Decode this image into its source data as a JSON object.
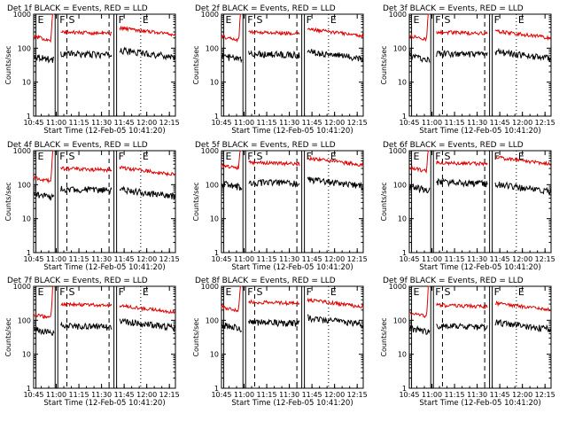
{
  "layout_grid": {
    "rows": 3,
    "cols": 3
  },
  "colors": {
    "events": "#000000",
    "lld": "#e00000",
    "background": "#ffffff"
  },
  "chart_data": [
    {
      "type": "line",
      "title": "Det 1f BLACK = Events, RED = LLD",
      "xlabel": "Start Time (12-Feb-05 10:41:20)",
      "ylabel": "Counts/sec",
      "yscale": "log",
      "ylim": [
        1,
        1000
      ],
      "y_ticks": [
        1,
        10,
        100,
        1000
      ],
      "y_tick_labels": [
        "1",
        "10",
        "100",
        "1000"
      ],
      "x_range_min": [
        4.0,
        98.0
      ],
      "x_ticks": [
        4,
        19,
        34,
        49,
        64,
        79,
        94
      ],
      "x_tick_labels": [
        "10:45",
        "11:00",
        "11:15",
        "11:30",
        "11:45",
        "12:00",
        "12:15"
      ],
      "markers": [
        {
          "label": "E",
          "t": 5.5,
          "style": "solid"
        },
        {
          "label": "F",
          "t": 20.0,
          "style": "solid"
        },
        {
          "label": "S",
          "t": 26.0,
          "style": "dashed"
        },
        {
          "label": "F",
          "t": 59.0,
          "style": "solid"
        },
        {
          "label": "E",
          "t": 75.0,
          "style": "dotted"
        }
      ],
      "series": [
        {
          "name": "Events",
          "color": "#000000",
          "levels": {
            "pre": 60,
            "mid": 70,
            "post": 55
          }
        },
        {
          "name": "LLD",
          "color": "#e00000",
          "levels": {
            "pre": 220,
            "mid": 300,
            "post": 250
          }
        }
      ]
    },
    {
      "type": "line",
      "title": "Det 2f BLACK = Events, RED = LLD",
      "xlabel": "Start Time (12-Feb-05 10:41:20)",
      "ylabel": "Counts/sec",
      "yscale": "log",
      "ylim": [
        1,
        1000
      ],
      "y_ticks": [
        1,
        10,
        100,
        1000
      ],
      "y_tick_labels": [
        "1",
        "10",
        "100",
        "1000"
      ],
      "x_range_min": [
        4.0,
        98.0
      ],
      "x_ticks": [
        4,
        19,
        34,
        49,
        64,
        79,
        94
      ],
      "x_tick_labels": [
        "10:45",
        "11:00",
        "11:15",
        "11:30",
        "11:45",
        "12:00",
        "12:15"
      ],
      "markers": [
        {
          "label": "E",
          "t": 5.5,
          "style": "solid"
        },
        {
          "label": "F",
          "t": 20.0,
          "style": "solid"
        },
        {
          "label": "S",
          "t": 26.0,
          "style": "dashed"
        },
        {
          "label": "F",
          "t": 59.0,
          "style": "solid"
        },
        {
          "label": "E",
          "t": 75.0,
          "style": "dotted"
        }
      ],
      "series": [
        {
          "name": "Events",
          "color": "#000000",
          "levels": {
            "pre": 60,
            "mid": 70,
            "post": 50
          }
        },
        {
          "name": "LLD",
          "color": "#e00000",
          "levels": {
            "pre": 220,
            "mid": 300,
            "post": 230
          }
        }
      ]
    },
    {
      "type": "line",
      "title": "Det 3f BLACK = Events, RED = LLD",
      "xlabel": "Start Time (12-Feb-05 10:41:20)",
      "ylabel": "Counts/sec",
      "yscale": "log",
      "ylim": [
        1,
        1000
      ],
      "y_ticks": [
        1,
        10,
        100,
        1000
      ],
      "y_tick_labels": [
        "1",
        "10",
        "100",
        "1000"
      ],
      "x_range_min": [
        4.0,
        98.0
      ],
      "x_ticks": [
        4,
        19,
        34,
        49,
        64,
        79,
        94
      ],
      "x_tick_labels": [
        "10:45",
        "11:00",
        "11:15",
        "11:30",
        "11:45",
        "12:00",
        "12:15"
      ],
      "markers": [
        {
          "label": "E",
          "t": 5.5,
          "style": "solid"
        },
        {
          "label": "F",
          "t": 20.0,
          "style": "solid"
        },
        {
          "label": "S",
          "t": 26.0,
          "style": "dashed"
        },
        {
          "label": "F",
          "t": 59.0,
          "style": "solid"
        },
        {
          "label": "E",
          "t": 75.0,
          "style": "dotted"
        }
      ],
      "series": [
        {
          "name": "Events",
          "color": "#000000",
          "levels": {
            "pre": 60,
            "mid": 70,
            "post": 50
          }
        },
        {
          "name": "LLD",
          "color": "#e00000",
          "levels": {
            "pre": 230,
            "mid": 300,
            "post": 200
          }
        }
      ]
    },
    {
      "type": "line",
      "title": "Det 4f BLACK = Events, RED = LLD",
      "xlabel": "Start Time (12-Feb-05 10:41:20)",
      "ylabel": "Counts/sec",
      "yscale": "log",
      "ylim": [
        1,
        1000
      ],
      "y_ticks": [
        1,
        10,
        100,
        1000
      ],
      "y_tick_labels": [
        "1",
        "10",
        "100",
        "1000"
      ],
      "x_range_min": [
        4.0,
        98.0
      ],
      "x_ticks": [
        4,
        19,
        34,
        49,
        64,
        79,
        94
      ],
      "x_tick_labels": [
        "10:45",
        "11:00",
        "11:15",
        "11:30",
        "11:45",
        "12:00",
        "12:15"
      ],
      "markers": [
        {
          "label": "E",
          "t": 5.5,
          "style": "solid"
        },
        {
          "label": "F",
          "t": 20.0,
          "style": "solid"
        },
        {
          "label": "S",
          "t": 26.0,
          "style": "dashed"
        },
        {
          "label": "F",
          "t": 59.0,
          "style": "solid"
        },
        {
          "label": "E",
          "t": 75.0,
          "style": "dotted"
        }
      ],
      "series": [
        {
          "name": "Events",
          "color": "#000000",
          "levels": {
            "pre": 55,
            "mid": 75,
            "post": 45
          }
        },
        {
          "name": "LLD",
          "color": "#e00000",
          "levels": {
            "pre": 160,
            "mid": 300,
            "post": 200
          }
        }
      ]
    },
    {
      "type": "line",
      "title": "Det 5f BLACK = Events, RED = LLD",
      "xlabel": "Start Time (12-Feb-05 10:41:20)",
      "ylabel": "Counts/sec",
      "yscale": "log",
      "ylim": [
        1,
        1000
      ],
      "y_ticks": [
        1,
        10,
        100,
        1000
      ],
      "y_tick_labels": [
        "1",
        "10",
        "100",
        "1000"
      ],
      "x_range_min": [
        4.0,
        98.0
      ],
      "x_ticks": [
        4,
        19,
        34,
        49,
        64,
        79,
        94
      ],
      "x_tick_labels": [
        "10:45",
        "11:00",
        "11:15",
        "11:30",
        "11:45",
        "12:00",
        "12:15"
      ],
      "markers": [
        {
          "label": "E",
          "t": 5.5,
          "style": "solid"
        },
        {
          "label": "F",
          "t": 20.0,
          "style": "solid"
        },
        {
          "label": "S",
          "t": 26.0,
          "style": "dashed"
        },
        {
          "label": "F",
          "t": 59.0,
          "style": "solid"
        },
        {
          "label": "E",
          "t": 75.0,
          "style": "dotted"
        }
      ],
      "series": [
        {
          "name": "Events",
          "color": "#000000",
          "levels": {
            "pre": 110,
            "mid": 120,
            "post": 90
          }
        },
        {
          "name": "LLD",
          "color": "#e00000",
          "levels": {
            "pre": 380,
            "mid": 450,
            "post": 380
          }
        }
      ]
    },
    {
      "type": "line",
      "title": "Det 6f BLACK = Events, RED = LLD",
      "xlabel": "Start Time (12-Feb-05 10:41:20)",
      "ylabel": "Counts/sec",
      "yscale": "log",
      "ylim": [
        1,
        1000
      ],
      "y_ticks": [
        1,
        10,
        100,
        1000
      ],
      "y_tick_labels": [
        "1",
        "10",
        "100",
        "1000"
      ],
      "x_range_min": [
        4.0,
        98.0
      ],
      "x_ticks": [
        4,
        19,
        34,
        49,
        64,
        79,
        94
      ],
      "x_tick_labels": [
        "10:45",
        "11:00",
        "11:15",
        "11:30",
        "11:45",
        "12:00",
        "12:15"
      ],
      "markers": [
        {
          "label": "E",
          "t": 5.5,
          "style": "solid"
        },
        {
          "label": "F",
          "t": 20.0,
          "style": "solid"
        },
        {
          "label": "S",
          "t": 26.0,
          "style": "dashed"
        },
        {
          "label": "F",
          "t": 59.0,
          "style": "solid"
        },
        {
          "label": "E",
          "t": 75.0,
          "style": "dotted"
        }
      ],
      "series": [
        {
          "name": "Events",
          "color": "#000000",
          "levels": {
            "pre": 90,
            "mid": 120,
            "post": 65
          }
        },
        {
          "name": "LLD",
          "color": "#e00000",
          "levels": {
            "pre": 320,
            "mid": 450,
            "post": 400
          }
        }
      ]
    },
    {
      "type": "line",
      "title": "Det 7f BLACK = Events, RED = LLD",
      "xlabel": "Start Time (12-Feb-05 10:41:20)",
      "ylabel": "Counts/sec",
      "yscale": "log",
      "ylim": [
        1,
        1000
      ],
      "y_ticks": [
        1,
        10,
        100,
        1000
      ],
      "y_tick_labels": [
        "1",
        "10",
        "100",
        "1000"
      ],
      "x_range_min": [
        4.0,
        98.0
      ],
      "x_ticks": [
        4,
        19,
        34,
        49,
        64,
        79,
        94
      ],
      "x_tick_labels": [
        "10:45",
        "11:00",
        "11:15",
        "11:30",
        "11:45",
        "12:00",
        "12:15"
      ],
      "markers": [
        {
          "label": "E",
          "t": 5.5,
          "style": "solid"
        },
        {
          "label": "F",
          "t": 20.0,
          "style": "solid"
        },
        {
          "label": "S",
          "t": 26.0,
          "style": "dashed"
        },
        {
          "label": "F",
          "t": 59.0,
          "style": "solid"
        },
        {
          "label": "E",
          "t": 75.0,
          "style": "dotted"
        }
      ],
      "series": [
        {
          "name": "Events",
          "color": "#000000",
          "levels": {
            "pre": 55,
            "mid": 70,
            "post": 60
          }
        },
        {
          "name": "LLD",
          "color": "#e00000",
          "levels": {
            "pre": 150,
            "mid": 300,
            "post": 170
          }
        }
      ]
    },
    {
      "type": "line",
      "title": "Det 8f BLACK = Events, RED = LLD",
      "xlabel": "Start Time (12-Feb-05 10:41:20)",
      "ylabel": "Counts/sec",
      "yscale": "log",
      "ylim": [
        1,
        1000
      ],
      "y_ticks": [
        1,
        10,
        100,
        1000
      ],
      "y_tick_labels": [
        "1",
        "10",
        "100",
        "1000"
      ],
      "x_range_min": [
        4.0,
        98.0
      ],
      "x_ticks": [
        4,
        19,
        34,
        49,
        64,
        79,
        94
      ],
      "x_tick_labels": [
        "10:45",
        "11:00",
        "11:15",
        "11:30",
        "11:45",
        "12:00",
        "12:15"
      ],
      "markers": [
        {
          "label": "E",
          "t": 5.5,
          "style": "solid"
        },
        {
          "label": "F",
          "t": 20.0,
          "style": "solid"
        },
        {
          "label": "S",
          "t": 26.0,
          "style": "dashed"
        },
        {
          "label": "F",
          "t": 59.0,
          "style": "solid"
        },
        {
          "label": "E",
          "t": 75.0,
          "style": "dotted"
        }
      ],
      "series": [
        {
          "name": "Events",
          "color": "#000000",
          "levels": {
            "pre": 75,
            "mid": 90,
            "post": 75
          }
        },
        {
          "name": "LLD",
          "color": "#e00000",
          "levels": {
            "pre": 250,
            "mid": 350,
            "post": 250
          }
        }
      ]
    },
    {
      "type": "line",
      "title": "Det 9f BLACK = Events, RED = LLD",
      "xlabel": "Start Time (12-Feb-05 10:41:20)",
      "ylabel": "Counts/sec",
      "yscale": "log",
      "ylim": [
        1,
        1000
      ],
      "y_ticks": [
        1,
        10,
        100,
        1000
      ],
      "y_tick_labels": [
        "1",
        "10",
        "100",
        "1000"
      ],
      "x_range_min": [
        4.0,
        98.0
      ],
      "x_ticks": [
        4,
        19,
        34,
        49,
        64,
        79,
        94
      ],
      "x_tick_labels": [
        "10:45",
        "11:00",
        "11:15",
        "11:30",
        "11:45",
        "12:00",
        "12:15"
      ],
      "markers": [
        {
          "label": "E",
          "t": 5.5,
          "style": "solid"
        },
        {
          "label": "F",
          "t": 20.0,
          "style": "solid"
        },
        {
          "label": "S",
          "t": 26.0,
          "style": "dashed"
        },
        {
          "label": "F",
          "t": 59.0,
          "style": "solid"
        },
        {
          "label": "E",
          "t": 75.0,
          "style": "dotted"
        }
      ],
      "series": [
        {
          "name": "Events",
          "color": "#000000",
          "levels": {
            "pre": 60,
            "mid": 70,
            "post": 55
          }
        },
        {
          "name": "LLD",
          "color": "#e00000",
          "levels": {
            "pre": 170,
            "mid": 280,
            "post": 200
          }
        }
      ]
    }
  ]
}
